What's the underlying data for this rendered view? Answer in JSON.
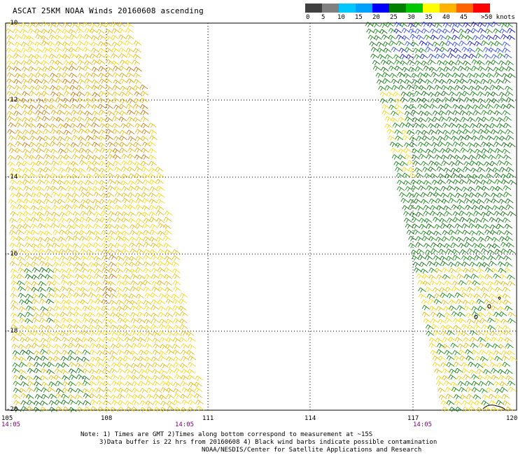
{
  "title": "ASCAT 25KM NOAA Winds 20160608 ascending",
  "colorbar": {
    "colors": [
      "#404040",
      "#808080",
      "#00c8ff",
      "#00a0ff",
      "#0000ff",
      "#008000",
      "#00c800",
      "#ffff00",
      "#ffb400",
      "#ff6400",
      "#ff0000",
      "#8b4513",
      "#c71585",
      "#8000ff",
      "#400080"
    ],
    "labels": [
      "0",
      "5",
      "10",
      "15",
      "20",
      "25",
      "30",
      "35",
      "40",
      "45",
      ">50 knots"
    ]
  },
  "axes": {
    "lat_labels": [
      "-10",
      "-12",
      "-14",
      "-16",
      "-18",
      "-20"
    ],
    "lon_labels": [
      "105",
      "108",
      "111",
      "114",
      "117",
      "120"
    ]
  },
  "times": [
    "14:05",
    "14:05",
    "14:05"
  ],
  "notes": {
    "line1": "Note: 1) Times are GMT 2)Times along bottom correspond to measurement at ~15S",
    "line2": "3)Data buffer is 22 hrs from 20160608 4) Black wind barbs indicate possible contamination",
    "line3": "NOAA/NESDIS/Center for Satellite Applications and Research"
  }
}
